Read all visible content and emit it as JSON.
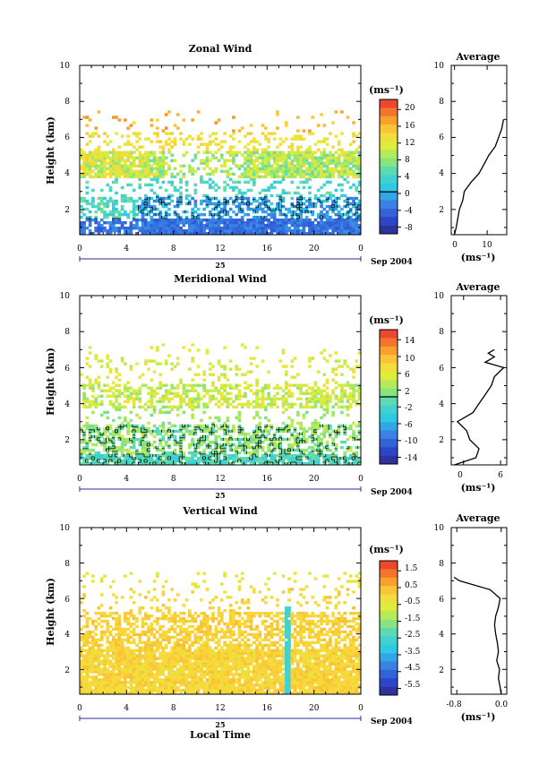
{
  "chart_data": [
    {
      "type": "heatmap",
      "title": "Zonal Wind",
      "ylabel": "Height (km)",
      "xlabel": "",
      "unit_label": "(ms⁻¹)",
      "x_ticks": [
        "0",
        "4",
        "8",
        "12",
        "16",
        "20",
        "0"
      ],
      "y_ticks": [
        "2",
        "4",
        "6",
        "8",
        "10"
      ],
      "xlim": [
        0,
        24
      ],
      "ylim": [
        0.6,
        10
      ],
      "day_label": "25",
      "date_label": "Sep 2004",
      "colorbar_ticks": [
        "20",
        "16",
        "12",
        "8",
        "4",
        "0",
        "-4",
        "-8"
      ],
      "colorbar_range": [
        -10,
        22
      ],
      "zero_contour_level": 0,
      "average": {
        "title": "Average",
        "xlabel": "(ms⁻¹)",
        "x_ticks": [
          "0",
          "10"
        ],
        "y_ticks": [
          "2",
          "4",
          "6",
          "8",
          "10"
        ],
        "xlim": [
          -1,
          16
        ],
        "ylim": [
          0.6,
          10
        ],
        "profile_height": [
          0.6,
          1.0,
          1.5,
          2.0,
          2.5,
          3.0,
          3.5,
          4.0,
          4.5,
          5.0,
          5.5,
          6.0,
          6.5,
          7.0
        ],
        "profile_value": [
          0.0,
          0.5,
          1.0,
          1.5,
          2.5,
          3.0,
          5.0,
          7.5,
          9.0,
          10.5,
          12.5,
          13.5,
          14.5,
          15.0
        ]
      }
    },
    {
      "type": "heatmap",
      "title": "Meridional Wind",
      "ylabel": "Height (km)",
      "xlabel": "",
      "unit_label": "(ms⁻¹)",
      "x_ticks": [
        "0",
        "4",
        "8",
        "12",
        "16",
        "20",
        "0"
      ],
      "y_ticks": [
        "2",
        "4",
        "6",
        "8",
        "10"
      ],
      "xlim": [
        0,
        24
      ],
      "ylim": [
        0.6,
        10
      ],
      "day_label": "25",
      "date_label": "Sep 2004",
      "colorbar_ticks": [
        "14",
        "10",
        "6",
        "2",
        "-2",
        "-6",
        "-10",
        "-14"
      ],
      "colorbar_range": [
        -16,
        16
      ],
      "zero_contour_level": 0,
      "average": {
        "title": "Average",
        "xlabel": "(ms⁻¹)",
        "x_ticks": [
          "0",
          "6"
        ],
        "y_ticks": [
          "2",
          "4",
          "6",
          "8",
          "10"
        ],
        "xlim": [
          -2,
          7
        ],
        "ylim": [
          0.6,
          10
        ],
        "profile_height": [
          0.6,
          1.0,
          1.5,
          2.0,
          2.5,
          3.0,
          3.5,
          4.0,
          4.5,
          5.0,
          5.5,
          6.0,
          6.3,
          6.6,
          6.8,
          7.0
        ],
        "profile_value": [
          -1.5,
          2.0,
          2.5,
          1.0,
          0.5,
          -1.0,
          1.5,
          2.5,
          3.5,
          4.5,
          5.0,
          6.5,
          3.5,
          5.0,
          4.0,
          5.0
        ]
      }
    },
    {
      "type": "heatmap",
      "title": "Vertical Wind",
      "ylabel": "Height (km)",
      "xlabel": "Local Time",
      "unit_label": "(ms⁻¹)",
      "x_ticks": [
        "0",
        "4",
        "8",
        "12",
        "16",
        "20",
        "0"
      ],
      "y_ticks": [
        "2",
        "4",
        "6",
        "8",
        "10"
      ],
      "xlim": [
        0,
        24
      ],
      "ylim": [
        0.6,
        10
      ],
      "day_label": "25",
      "date_label": "Sep 2004",
      "colorbar_ticks": [
        "1.5",
        "0.5",
        "-0.5",
        "-1.5",
        "-2.5",
        "-3.5",
        "-4.5",
        "-5.5"
      ],
      "colorbar_range": [
        -6.2,
        2.0
      ],
      "zero_contour_level": null,
      "average": {
        "title": "Average",
        "xlabel": "(ms⁻¹)",
        "x_ticks": [
          "-0.8",
          "0.0"
        ],
        "y_ticks": [
          "2",
          "4",
          "6",
          "8",
          "10"
        ],
        "xlim": [
          -0.9,
          0.1
        ],
        "ylim": [
          0.6,
          10
        ],
        "profile_height": [
          0.6,
          1.0,
          1.5,
          2.0,
          2.5,
          3.0,
          3.5,
          4.0,
          4.5,
          5.0,
          5.5,
          6.0,
          6.5,
          7.0,
          7.2
        ],
        "profile_value": [
          0.0,
          -0.02,
          -0.05,
          -0.03,
          -0.08,
          -0.05,
          -0.07,
          -0.1,
          -0.12,
          -0.1,
          -0.05,
          -0.02,
          -0.2,
          -0.75,
          -0.85
        ]
      }
    }
  ]
}
